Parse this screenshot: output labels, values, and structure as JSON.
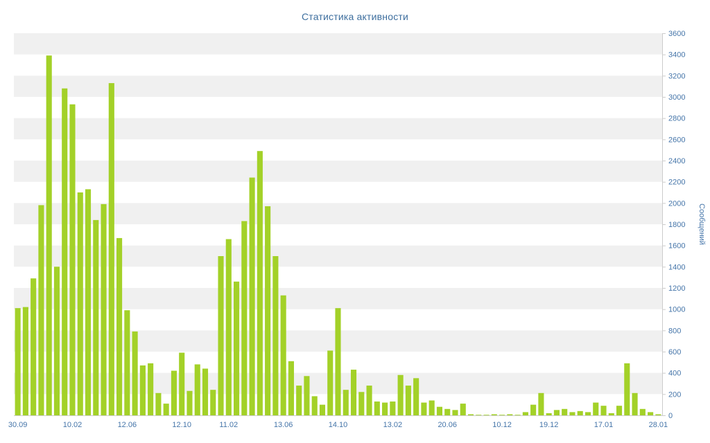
{
  "chart_data": {
    "type": "bar",
    "title": "Статистика активности",
    "xlabel": "",
    "ylabel": "Сообщений",
    "ylim": [
      0,
      3600
    ],
    "y_tick_step": 200,
    "grid": "striped-horizontal-bands",
    "legend": "none",
    "y_axis_position": "right",
    "x_tick_labels": [
      "30.09",
      "10.02",
      "12.06",
      "12.10",
      "11.02",
      "13.06",
      "14.10",
      "13.02",
      "20.06",
      "10.12",
      "19.12",
      "17.01",
      "28.01"
    ],
    "x_tick_indices": [
      0,
      7,
      14,
      21,
      27,
      34,
      41,
      48,
      55,
      62,
      68,
      75,
      82
    ],
    "values": [
      1010,
      1020,
      1290,
      1980,
      3390,
      1400,
      3080,
      2930,
      2100,
      2130,
      1840,
      1990,
      3130,
      1670,
      990,
      790,
      470,
      490,
      210,
      110,
      420,
      590,
      230,
      480,
      440,
      240,
      1500,
      1660,
      1260,
      1830,
      2240,
      2490,
      1970,
      1500,
      1130,
      510,
      280,
      370,
      180,
      100,
      610,
      1010,
      240,
      430,
      220,
      280,
      130,
      120,
      130,
      380,
      280,
      350,
      120,
      140,
      80,
      60,
      50,
      110,
      10,
      5,
      5,
      10,
      5,
      10,
      5,
      30,
      100,
      210,
      20,
      50,
      60,
      30,
      40,
      30,
      120,
      90,
      20,
      90,
      490,
      210,
      60,
      30,
      10
    ],
    "colors": {
      "bar": "#a3d128",
      "stripe": "#f0f0f0",
      "axis": "#cccccc",
      "label": "#4575a9",
      "title": "#3d6e9e",
      "background": "#ffffff"
    }
  }
}
